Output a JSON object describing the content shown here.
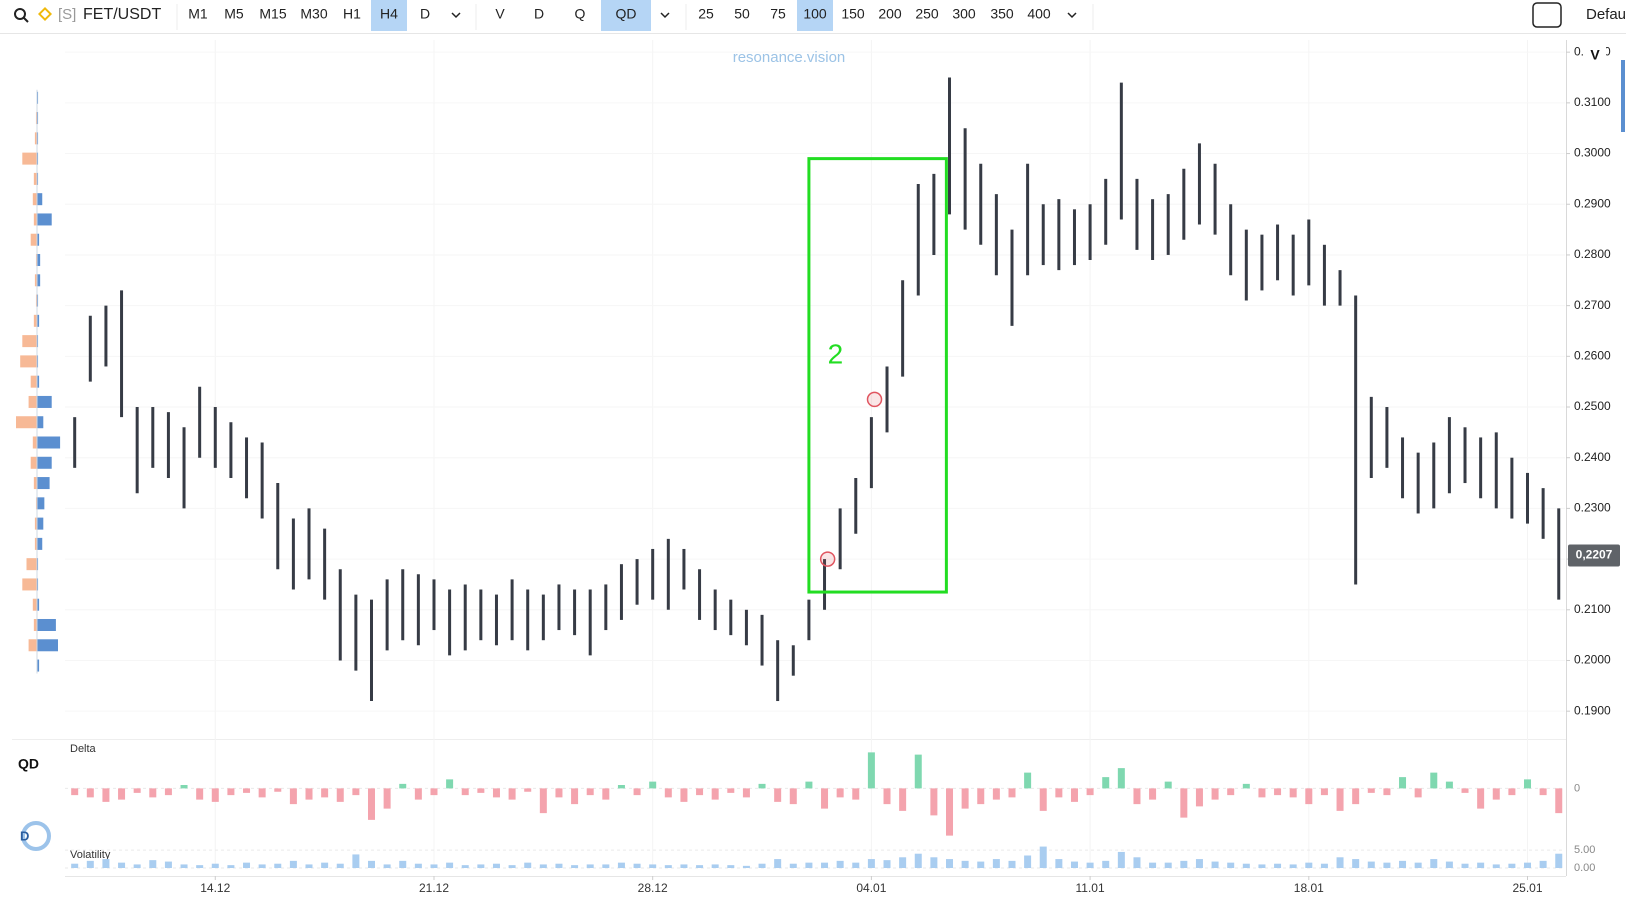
{
  "toolbar": {
    "symbol_prefix": "[S]",
    "symbol": "FET/USDT",
    "timeframes": [
      "M1",
      "M5",
      "M15",
      "M30",
      "H1",
      "H4",
      "D"
    ],
    "timeframe_active": 5,
    "modes": [
      "V",
      "D",
      "Q",
      "QD"
    ],
    "mode_active": 3,
    "depths": [
      "25",
      "50",
      "75",
      "100",
      "150",
      "200",
      "250",
      "300",
      "350",
      "400"
    ],
    "depth_active": 3,
    "layout": "Defau"
  },
  "sidebar": {
    "indicator": "QD",
    "logo": "D"
  },
  "chart_data": [
    {
      "type": "range",
      "watermark": "resonance.vision",
      "axis_button": "V",
      "color": "#363b45",
      "x": [
        -4.5,
        -4,
        -3.5,
        -3,
        -2.5,
        -2,
        -1.5,
        -1,
        -0.5,
        0,
        0.5,
        1,
        1.5,
        2,
        2.5,
        3,
        3.5,
        4,
        4.5,
        5,
        5.5,
        6,
        6.5,
        7,
        7.5,
        8,
        8.5,
        9,
        9.5,
        10,
        10.5,
        11,
        11.5,
        12,
        12.5,
        13,
        13.5,
        14,
        14.5,
        15,
        15.5,
        16,
        16.5,
        17,
        17.5,
        18,
        18.5,
        19,
        19.5,
        20,
        20.5,
        21,
        21.5,
        22,
        22.5,
        23,
        23.5,
        24,
        24.5,
        25,
        25.5,
        26,
        26.5,
        27,
        27.5,
        28,
        28.5,
        29,
        29.5,
        30,
        30.5,
        31,
        31.5,
        32,
        32.5,
        33,
        33.5,
        34,
        34.5,
        35,
        35.5,
        36,
        36.5,
        37,
        37.5,
        38,
        38.5,
        39,
        39.5,
        40,
        40.5,
        41,
        41.5,
        42,
        42.5,
        43
      ],
      "low": [
        0.238,
        0.255,
        0.258,
        0.248,
        0.233,
        0.238,
        0.236,
        0.23,
        0.24,
        0.238,
        0.236,
        0.232,
        0.228,
        0.218,
        0.214,
        0.216,
        0.212,
        0.2,
        0.198,
        0.192,
        0.202,
        0.204,
        0.203,
        0.206,
        0.201,
        0.202,
        0.204,
        0.203,
        0.204,
        0.202,
        0.204,
        0.206,
        0.205,
        0.201,
        0.206,
        0.208,
        0.211,
        0.212,
        0.21,
        0.214,
        0.208,
        0.206,
        0.205,
        0.203,
        0.199,
        0.192,
        0.197,
        0.204,
        0.21,
        0.218,
        0.225,
        0.234,
        0.245,
        0.256,
        0.272,
        0.28,
        0.288,
        0.285,
        0.282,
        0.276,
        0.266,
        0.276,
        0.278,
        0.277,
        0.278,
        0.279,
        0.282,
        0.287,
        0.281,
        0.279,
        0.28,
        0.283,
        0.286,
        0.284,
        0.276,
        0.271,
        0.273,
        0.275,
        0.272,
        0.274,
        0.27,
        0.27,
        0.215,
        0.236,
        0.238,
        0.232,
        0.229,
        0.23,
        0.233,
        0.235,
        0.232,
        0.23,
        0.228,
        0.227,
        0.224,
        0.212
      ],
      "high": [
        0.248,
        0.268,
        0.27,
        0.273,
        0.25,
        0.25,
        0.249,
        0.246,
        0.254,
        0.25,
        0.247,
        0.244,
        0.243,
        0.235,
        0.228,
        0.23,
        0.226,
        0.218,
        0.213,
        0.212,
        0.216,
        0.218,
        0.217,
        0.216,
        0.214,
        0.215,
        0.214,
        0.213,
        0.216,
        0.214,
        0.213,
        0.215,
        0.214,
        0.214,
        0.215,
        0.219,
        0.22,
        0.222,
        0.224,
        0.222,
        0.218,
        0.214,
        0.212,
        0.21,
        0.209,
        0.204,
        0.203,
        0.212,
        0.22,
        0.23,
        0.236,
        0.248,
        0.258,
        0.275,
        0.294,
        0.296,
        0.315,
        0.305,
        0.298,
        0.292,
        0.285,
        0.298,
        0.29,
        0.291,
        0.289,
        0.29,
        0.295,
        0.314,
        0.295,
        0.291,
        0.292,
        0.297,
        0.302,
        0.298,
        0.29,
        0.285,
        0.284,
        0.286,
        0.284,
        0.287,
        0.282,
        0.277,
        0.272,
        0.252,
        0.25,
        0.244,
        0.241,
        0.243,
        0.248,
        0.246,
        0.244,
        0.245,
        0.24,
        0.237,
        0.234,
        0.23
      ],
      "xlim": [
        -4.81,
        43.2
      ],
      "xticks": [
        {
          "value": 0,
          "label": "14.12"
        },
        {
          "value": 7,
          "label": "21.12"
        },
        {
          "value": 14,
          "label": "28.12"
        },
        {
          "value": 21,
          "label": "04.01"
        },
        {
          "value": 28,
          "label": "11.01"
        },
        {
          "value": 35,
          "label": "18.01"
        },
        {
          "value": 42,
          "label": "25.01"
        }
      ],
      "ylim": [
        0.1853,
        0.3224
      ],
      "yticks": [
        {
          "value": 0.19,
          "label": "0.1900"
        },
        {
          "value": 0.2,
          "label": "0.2000"
        },
        {
          "value": 0.21,
          "label": "0.2100"
        },
        {
          "value": 0.22,
          "label": "0.2200"
        },
        {
          "value": 0.23,
          "label": "0.2300"
        },
        {
          "value": 0.24,
          "label": "0.2400"
        },
        {
          "value": 0.25,
          "label": "0.2500"
        },
        {
          "value": 0.26,
          "label": "0.2600"
        },
        {
          "value": 0.27,
          "label": "0.2700"
        },
        {
          "value": 0.28,
          "label": "0.2800"
        },
        {
          "value": 0.29,
          "label": "0.2900"
        },
        {
          "value": 0.3,
          "label": "0.3000"
        },
        {
          "value": 0.31,
          "label": "0.3100"
        },
        {
          "value": 0.32,
          "label": "0.3200"
        }
      ],
      "grid": true,
      "last_price": {
        "value": 0.2207,
        "label": "0,2207"
      },
      "annotations": {
        "box": {
          "x0": 19.0,
          "x1": 23.4,
          "y0": 0.2135,
          "y1": 0.299,
          "color": "#22dd22"
        },
        "label": {
          "text": "2",
          "x": 19.6,
          "y": 0.26
        },
        "markers": [
          {
            "x": 21.1,
            "y": 0.2515
          },
          {
            "x": 19.6,
            "y": 0.22
          }
        ],
        "marker_color": "#e05560"
      }
    },
    {
      "type": "bar",
      "title": "Delta",
      "pos_color": "#7fd8b0",
      "neg_color": "#f4a3ad",
      "x": [
        -4.5,
        -4,
        -3.5,
        -3,
        -2.5,
        -2,
        -1.5,
        -1,
        -0.5,
        0,
        0.5,
        1,
        1.5,
        2,
        2.5,
        3,
        3.5,
        4,
        4.5,
        5,
        5.5,
        6,
        6.5,
        7,
        7.5,
        8,
        8.5,
        9,
        9.5,
        10,
        10.5,
        11,
        11.5,
        12,
        12.5,
        13,
        13.5,
        14,
        14.5,
        15,
        15.5,
        16,
        16.5,
        17,
        17.5,
        18,
        18.5,
        19,
        19.5,
        20,
        20.5,
        21,
        21.5,
        22,
        22.5,
        23,
        23.5,
        24,
        24.5,
        25,
        25.5,
        26,
        26.5,
        27,
        27.5,
        28,
        28.5,
        29,
        29.5,
        30,
        30.5,
        31,
        31.5,
        32,
        32.5,
        33,
        33.5,
        34,
        34.5,
        35,
        35.5,
        36,
        36.5,
        37,
        37.5,
        38,
        38.5,
        39,
        39.5,
        40,
        40.5,
        41,
        41.5,
        42,
        42.5,
        43
      ],
      "values": [
        -6,
        -8,
        -12,
        -10,
        -4,
        -8,
        -6,
        3,
        -10,
        -12,
        -6,
        -4,
        -8,
        -3,
        -14,
        -10,
        -8,
        -12,
        -6,
        -28,
        -18,
        4,
        -10,
        -6,
        8,
        -6,
        -4,
        -8,
        -10,
        -3,
        -22,
        -8,
        -14,
        -6,
        -10,
        3,
        -6,
        6,
        -8,
        -12,
        -6,
        -10,
        -4,
        -8,
        4,
        -12,
        -14,
        6,
        -18,
        -8,
        -10,
        32,
        -14,
        -20,
        30,
        -24,
        -42,
        -18,
        -14,
        -10,
        -8,
        14,
        -20,
        -8,
        -12,
        -6,
        10,
        18,
        -14,
        -10,
        6,
        -26,
        -16,
        -10,
        -6,
        4,
        -8,
        -6,
        -8,
        -14,
        -6,
        -20,
        -14,
        -4,
        -6,
        10,
        -8,
        14,
        6,
        -4,
        -18,
        -10,
        -6,
        8,
        -6,
        -22
      ],
      "ylim": [
        -45,
        35
      ],
      "yticks": [
        0
      ]
    },
    {
      "type": "bar",
      "title": "Volatility",
      "color": "#a9cdf0",
      "x": [
        -4.5,
        -4,
        -3.5,
        -3,
        -2.5,
        -2,
        -1.5,
        -1,
        -0.5,
        0,
        0.5,
        1,
        1.5,
        2,
        2.5,
        3,
        3.5,
        4,
        4.5,
        5,
        5.5,
        6,
        6.5,
        7,
        7.5,
        8,
        8.5,
        9,
        9.5,
        10,
        10.5,
        11,
        11.5,
        12,
        12.5,
        13,
        13.5,
        14,
        14.5,
        15,
        15.5,
        16,
        16.5,
        17,
        17.5,
        18,
        18.5,
        19,
        19.5,
        20,
        20.5,
        21,
        21.5,
        22,
        22.5,
        23,
        23.5,
        24,
        24.5,
        25,
        25.5,
        26,
        26.5,
        27,
        27.5,
        28,
        28.5,
        29,
        29.5,
        30,
        30.5,
        31,
        31.5,
        32,
        32.5,
        33,
        33.5,
        34,
        34.5,
        35,
        35.5,
        36,
        36.5,
        37,
        37.5,
        38,
        38.5,
        39,
        39.5,
        40,
        40.5,
        41,
        41.5,
        42,
        42.5,
        43
      ],
      "values": [
        1.2,
        2.0,
        2.5,
        1.5,
        1.0,
        2.2,
        1.8,
        1.0,
        0.8,
        1.2,
        0.8,
        1.5,
        1.0,
        1.2,
        2.0,
        1.0,
        1.5,
        1.2,
        3.8,
        2.0,
        1.0,
        2.0,
        1.2,
        1.0,
        1.5,
        0.8,
        1.0,
        1.2,
        0.8,
        1.5,
        1.0,
        1.2,
        0.8,
        1.0,
        1.0,
        1.5,
        1.2,
        1.0,
        0.8,
        1.0,
        0.8,
        1.0,
        0.8,
        0.6,
        1.2,
        2.5,
        1.2,
        1.5,
        1.5,
        2.0,
        1.5,
        2.5,
        2.2,
        3.0,
        4.0,
        3.0,
        2.5,
        2.0,
        1.8,
        2.5,
        2.0,
        3.5,
        6.0,
        2.5,
        1.8,
        1.5,
        2.0,
        4.5,
        3.0,
        1.5,
        1.5,
        2.0,
        2.5,
        1.8,
        1.5,
        1.2,
        1.0,
        1.2,
        1.0,
        1.5,
        1.2,
        3.0,
        2.5,
        1.8,
        1.5,
        2.0,
        1.5,
        2.5,
        1.8,
        1.2,
        1.5,
        1.0,
        1.2,
        1.5,
        2.0,
        4.0
      ],
      "ylim": [
        0,
        7
      ],
      "yticks": [
        {
          "value": 0,
          "label": "0.00"
        },
        {
          "value": 5,
          "label": "5.00"
        }
      ]
    },
    {
      "type": "profile",
      "sell_color": "#f7b996",
      "buy_color": "#5b8fd0",
      "levels": [
        0.199,
        0.203,
        0.207,
        0.211,
        0.215,
        0.219,
        0.223,
        0.227,
        0.231,
        0.235,
        0.239,
        0.243,
        0.247,
        0.251,
        0.255,
        0.259,
        0.263,
        0.267,
        0.271,
        0.275,
        0.279,
        0.283,
        0.287,
        0.291,
        0.295,
        0.299,
        0.303,
        0.307,
        0.311
      ],
      "sell": [
        0,
        8,
        3,
        4,
        14,
        10,
        2,
        2,
        1,
        3,
        6,
        4,
        20,
        8,
        6,
        16,
        14,
        3,
        1,
        2,
        1,
        6,
        3,
        4,
        3,
        14,
        2,
        1,
        0
      ],
      "buy": [
        2,
        20,
        18,
        2,
        1,
        1,
        5,
        6,
        7,
        12,
        14,
        22,
        6,
        14,
        2,
        1,
        1,
        2,
        1,
        3,
        3,
        2,
        14,
        5,
        1,
        1,
        1,
        1,
        1
      ]
    }
  ]
}
